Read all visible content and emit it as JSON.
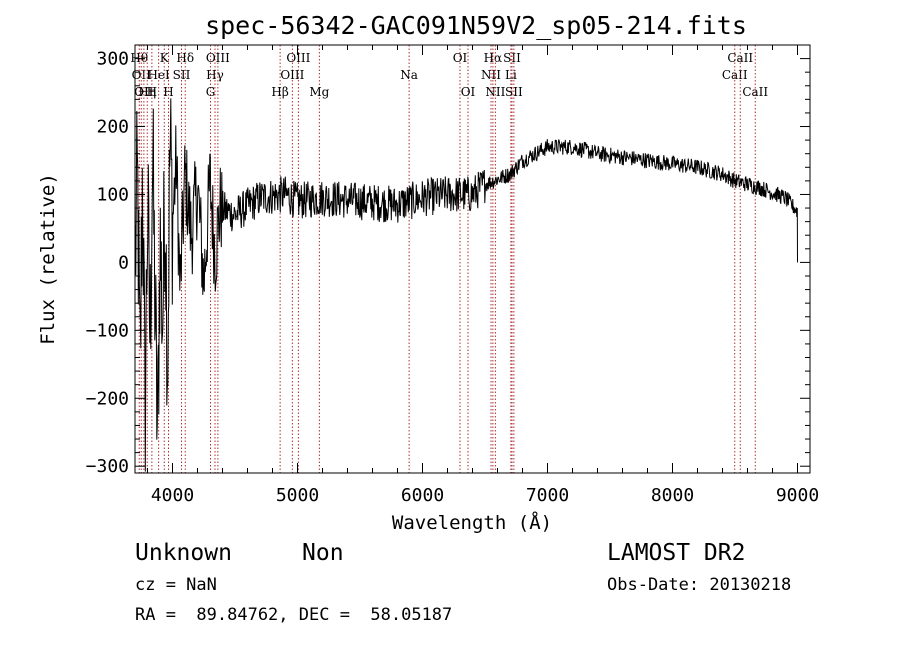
{
  "chart_data": {
    "type": "line",
    "title": "spec-56342-GAC091N59V2_sp05-214.fits",
    "xlabel": "Wavelength (Å)",
    "ylabel": "Flux (relative)",
    "xlim": [
      3700,
      9100
    ],
    "ylim": [
      -310,
      320
    ],
    "x_ticks": [
      4000,
      5000,
      6000,
      7000,
      8000,
      9000
    ],
    "x_tick_labels": [
      "4000",
      "5000",
      "6000",
      "7000",
      "8000",
      "9000"
    ],
    "y_ticks": [
      -300,
      -200,
      -100,
      0,
      100,
      200,
      300
    ],
    "y_tick_labels": [
      "−300",
      "−200",
      "−100",
      "0",
      "100",
      "200",
      "300"
    ],
    "grid": false,
    "series": [
      {
        "name": "Flux",
        "points": [
          [
            3700,
            0
          ],
          [
            3720,
            120
          ],
          [
            3740,
            -180
          ],
          [
            3760,
            150
          ],
          [
            3780,
            -240
          ],
          [
            3800,
            90
          ],
          [
            3820,
            -120
          ],
          [
            3840,
            160
          ],
          [
            3860,
            -60
          ],
          [
            3880,
            -270
          ],
          [
            3900,
            40
          ],
          [
            3920,
            -90
          ],
          [
            3940,
            110
          ],
          [
            3960,
            -150
          ],
          [
            3980,
            180
          ],
          [
            4000,
            60
          ],
          [
            4030,
            150
          ],
          [
            4060,
            -40
          ],
          [
            4100,
            130
          ],
          [
            4150,
            40
          ],
          [
            4200,
            110
          ],
          [
            4250,
            -30
          ],
          [
            4300,
            120
          ],
          [
            4340,
            10
          ],
          [
            4380,
            80
          ],
          [
            4500,
            70
          ],
          [
            4700,
            95
          ],
          [
            4900,
            100
          ],
          [
            5000,
            90
          ],
          [
            5200,
            95
          ],
          [
            5500,
            90
          ],
          [
            5800,
            85
          ],
          [
            6000,
            95
          ],
          [
            6200,
            100
          ],
          [
            6400,
            100
          ],
          [
            6500,
            115
          ],
          [
            6700,
            130
          ],
          [
            6800,
            150
          ],
          [
            7000,
            170
          ],
          [
            7200,
            170
          ],
          [
            7400,
            160
          ],
          [
            7600,
            155
          ],
          [
            7800,
            150
          ],
          [
            8000,
            145
          ],
          [
            8200,
            140
          ],
          [
            8400,
            130
          ],
          [
            8500,
            120
          ],
          [
            8700,
            110
          ],
          [
            8900,
            95
          ],
          [
            9000,
            75
          ],
          [
            9005,
            0
          ]
        ]
      }
    ],
    "line_markers": [
      {
        "x": 3734,
        "label": "Hθ",
        "row": 1
      },
      {
        "x": 3750,
        "label": "OII",
        "row": 2
      },
      {
        "x": 3771,
        "label": "OII",
        "row": 3
      },
      {
        "x": 3798,
        "label": "Hη",
        "row": 3
      },
      {
        "x": 3835,
        "label": "H",
        "row": 3
      },
      {
        "x": 3889,
        "label": "HeI",
        "row": 2
      },
      {
        "x": 3934,
        "label": "K",
        "row": 1
      },
      {
        "x": 3968,
        "label": "H",
        "row": 3
      },
      {
        "x": 4072,
        "label": "SII",
        "row": 2
      },
      {
        "x": 4102,
        "label": "Hδ",
        "row": 1
      },
      {
        "x": 4304,
        "label": "G",
        "row": 3
      },
      {
        "x": 4340,
        "label": "Hγ",
        "row": 2
      },
      {
        "x": 4363,
        "label": "OIII",
        "row": 1
      },
      {
        "x": 4861,
        "label": "Hβ",
        "row": 3
      },
      {
        "x": 4959,
        "label": "OIII",
        "row": 2
      },
      {
        "x": 5007,
        "label": "OIII",
        "row": 1
      },
      {
        "x": 5175,
        "label": "Mg",
        "row": 3
      },
      {
        "x": 5893,
        "label": "Na",
        "row": 2
      },
      {
        "x": 6300,
        "label": "OI",
        "row": 1
      },
      {
        "x": 6364,
        "label": "OI",
        "row": 3
      },
      {
        "x": 6548,
        "label": "NII",
        "row": 2
      },
      {
        "x": 6563,
        "label": "Hα",
        "row": 1
      },
      {
        "x": 6583,
        "label": "NII",
        "row": 3
      },
      {
        "x": 6707,
        "label": "Li",
        "row": 2
      },
      {
        "x": 6716,
        "label": "SII",
        "row": 1
      },
      {
        "x": 6731,
        "label": "SII",
        "row": 3
      },
      {
        "x": 8498,
        "label": "CaII",
        "row": 2
      },
      {
        "x": 8542,
        "label": "CaII",
        "row": 1
      },
      {
        "x": 8662,
        "label": "CaII",
        "row": 3
      }
    ]
  },
  "info": {
    "classification": "Unknown",
    "subclass": "Non",
    "survey": "LAMOST DR2",
    "cz": "cz = NaN",
    "obs_date": "Obs-Date: 20130218",
    "coords": "RA =  89.84762, DEC =  58.05187"
  },
  "colors": {
    "line": "#000000",
    "marker": "#b03030",
    "background": "#ffffff"
  }
}
